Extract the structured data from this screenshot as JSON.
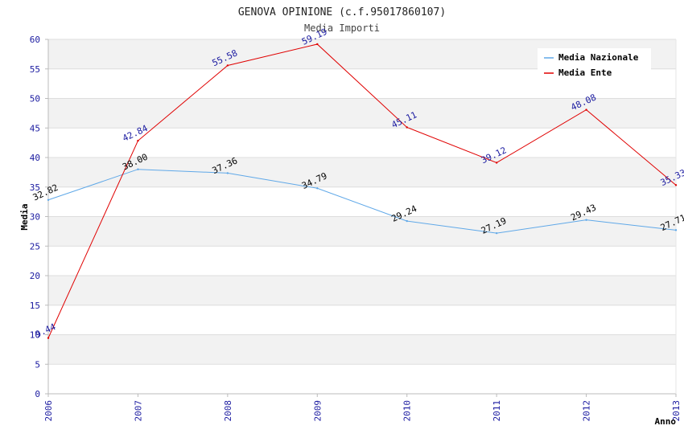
{
  "chart_data": {
    "type": "line",
    "title": "GENOVA OPINIONE (c.f.95017860107)",
    "subtitle": "Media Importi",
    "xlabel": "Anno",
    "ylabel": "Media",
    "categories": [
      "2006",
      "2007",
      "2008",
      "2009",
      "2010",
      "2011",
      "2012",
      "2013"
    ],
    "ylim": [
      0,
      60
    ],
    "yticks": [
      0,
      5,
      10,
      15,
      20,
      25,
      30,
      35,
      40,
      45,
      50,
      55,
      60
    ],
    "grid": true,
    "legend_position": "top-right",
    "series": [
      {
        "name": "Media Nazionale",
        "color": "#5fa8e8",
        "label_color": "#000000",
        "values": [
          32.82,
          38.0,
          37.36,
          34.79,
          29.24,
          27.19,
          29.43,
          27.71
        ],
        "labels": [
          "32.82",
          "38.00",
          "37.36",
          "34.79",
          "29.24",
          "27.19",
          "29.43",
          "27.71"
        ]
      },
      {
        "name": "Media Ente",
        "color": "#e00000",
        "label_color": "#1a1aa0",
        "values": [
          9.44,
          42.84,
          55.58,
          59.19,
          45.11,
          39.12,
          48.08,
          35.33
        ],
        "labels": [
          "9.44",
          "42.84",
          "55.58",
          "59.19",
          "45.11",
          "39.12",
          "48.08",
          "35.33"
        ]
      }
    ],
    "colors": {
      "tick_text": "#1a1aa0",
      "band": "#f2f2f2",
      "gridline": "#dddddd",
      "axis": "#bbbbbb"
    }
  }
}
